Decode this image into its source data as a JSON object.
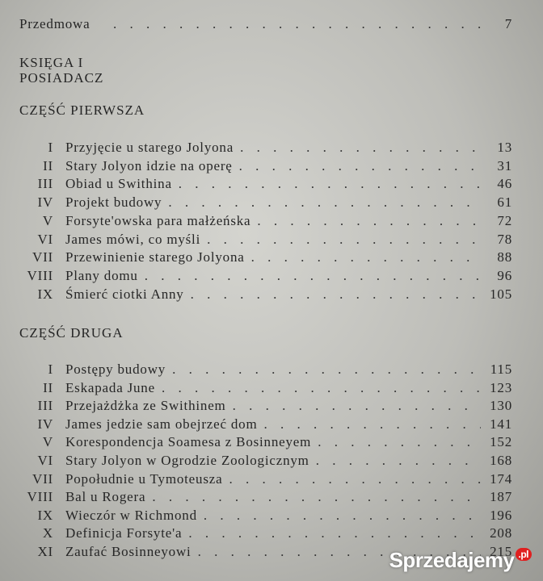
{
  "preface": {
    "title": "Przedmowa",
    "page": "7"
  },
  "book": {
    "label": "KSIĘGA I",
    "title": "POSIADACZ"
  },
  "parts": [
    {
      "title": "CZĘŚĆ PIERWSZA",
      "chapters": [
        {
          "numeral": "I",
          "title": "Przyjęcie u starego Jolyona",
          "page": "13"
        },
        {
          "numeral": "II",
          "title": "Stary Jolyon idzie na operę",
          "page": "31"
        },
        {
          "numeral": "III",
          "title": "Obiad u Swithina",
          "page": "46"
        },
        {
          "numeral": "IV",
          "title": "Projekt budowy",
          "page": "61"
        },
        {
          "numeral": "V",
          "title": "Forsyte'owska para małżeńska",
          "page": "72"
        },
        {
          "numeral": "VI",
          "title": "James mówi, co myśli",
          "page": "78"
        },
        {
          "numeral": "VII",
          "title": "Przewinienie starego Jolyona",
          "page": "88"
        },
        {
          "numeral": "VIII",
          "title": "Plany domu",
          "page": "96"
        },
        {
          "numeral": "IX",
          "title": "Śmierć ciotki Anny",
          "page": "105"
        }
      ]
    },
    {
      "title": "CZĘŚĆ DRUGA",
      "chapters": [
        {
          "numeral": "I",
          "title": "Postępy budowy",
          "page": "115"
        },
        {
          "numeral": "II",
          "title": "Eskapada June",
          "page": "123"
        },
        {
          "numeral": "III",
          "title": "Przejażdżka ze Swithinem",
          "page": "130"
        },
        {
          "numeral": "IV",
          "title": "James jedzie sam obejrzeć dom",
          "page": "141"
        },
        {
          "numeral": "V",
          "title": "Korespondencja Soamesa z Bosinneyem",
          "page": "152"
        },
        {
          "numeral": "VI",
          "title": "Stary Jolyon w Ogrodzie Zoologicznym",
          "page": "168"
        },
        {
          "numeral": "VII",
          "title": "Popołudnie u Tymoteusza",
          "page": "174"
        },
        {
          "numeral": "VIII",
          "title": "Bal u Rogera",
          "page": "187"
        },
        {
          "numeral": "IX",
          "title": "Wieczór w Richmond",
          "page": "196"
        },
        {
          "numeral": "X",
          "title": "Definicja Forsyte'a",
          "page": "208"
        },
        {
          "numeral": "XI",
          "title": "Zaufać Bosinneyowi",
          "page": "215"
        }
      ]
    }
  ],
  "watermark": {
    "text": "Sprzedajemy",
    "suffix": ".pl"
  }
}
